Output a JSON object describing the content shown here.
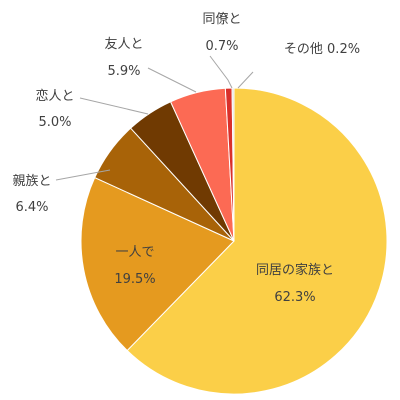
{
  "chart_data": {
    "type": "pie",
    "title": "",
    "slices": [
      {
        "label": "同居の家族と",
        "value": 62.3,
        "display": "62.3%",
        "color": "#FBCF48"
      },
      {
        "label": "一人で",
        "value": 19.5,
        "display": "19.5%",
        "color": "#E59A1F"
      },
      {
        "label": "親族と",
        "value": 6.4,
        "display": "6.4%",
        "color": "#A86308"
      },
      {
        "label": "恋人と",
        "value": 5.0,
        "display": "5.0%",
        "color": "#703A02"
      },
      {
        "label": "友人と",
        "value": 5.9,
        "display": "5.9%",
        "color": "#FC6A54"
      },
      {
        "label": "同僚と",
        "value": 0.7,
        "display": "0.7%",
        "color": "#D9302B"
      },
      {
        "label": "その他",
        "value": 0.2,
        "display": "0.2%",
        "color": "#D8D8D8"
      }
    ]
  }
}
